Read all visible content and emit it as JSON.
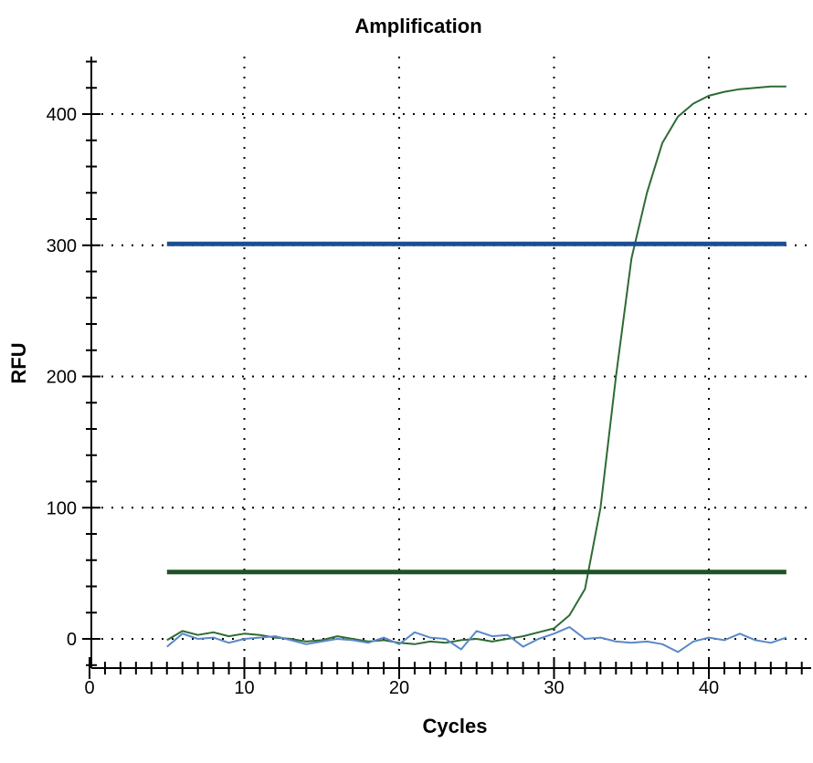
{
  "chart_data": {
    "type": "line",
    "title": "Amplification",
    "xlabel": "Cycles",
    "ylabel": "RFU",
    "xlim": [
      0,
      46
    ],
    "ylim": [
      -20,
      445
    ],
    "x_ticks": [
      0,
      10,
      20,
      30,
      40
    ],
    "y_ticks": [
      0,
      100,
      200,
      300,
      400
    ],
    "grid": true,
    "legend": "none",
    "series": [
      {
        "color": "#2e6b35",
        "x": [
          5,
          6,
          7,
          8,
          9,
          10,
          11,
          12,
          13,
          14,
          15,
          16,
          17,
          18,
          19,
          20,
          21,
          22,
          23,
          24,
          25,
          26,
          27,
          28,
          29,
          30,
          31,
          32,
          33,
          34,
          35,
          36,
          37,
          38,
          39,
          40,
          41,
          42,
          43,
          44,
          45
        ],
        "y": [
          -1,
          6,
          3,
          5,
          2,
          4,
          3,
          1,
          0,
          -2,
          -1,
          2,
          0,
          -2,
          -1,
          -3,
          -4,
          -2,
          -3,
          -1,
          0,
          -2,
          0,
          2,
          5,
          8,
          18,
          38,
          100,
          200,
          290,
          340,
          378,
          398,
          408,
          414,
          417,
          419,
          420,
          421,
          421
        ]
      },
      {
        "color": "#5b88c8",
        "x": [
          5,
          6,
          7,
          8,
          9,
          10,
          11,
          12,
          13,
          14,
          15,
          16,
          17,
          18,
          19,
          20,
          21,
          22,
          23,
          24,
          25,
          26,
          27,
          28,
          29,
          30,
          31,
          32,
          33,
          34,
          35,
          36,
          37,
          38,
          39,
          40,
          41,
          42,
          43,
          44,
          45
        ],
        "y": [
          -6,
          4,
          0,
          1,
          -3,
          0,
          1,
          2,
          -1,
          -4,
          -2,
          0,
          -1,
          -3,
          1,
          -4,
          5,
          1,
          0,
          -8,
          6,
          2,
          3,
          -6,
          0,
          4,
          9,
          0,
          1,
          -2,
          -3,
          -2,
          -4,
          -10,
          -2,
          1,
          -1,
          4,
          -1,
          -3,
          1
        ]
      },
      {
        "color": "#1c4f8f",
        "role": "threshold",
        "x": [
          5,
          45
        ],
        "y": [
          301,
          301
        ]
      },
      {
        "color": "#1f5226",
        "role": "threshold",
        "x": [
          5,
          45
        ],
        "y": [
          51,
          51
        ]
      }
    ]
  }
}
